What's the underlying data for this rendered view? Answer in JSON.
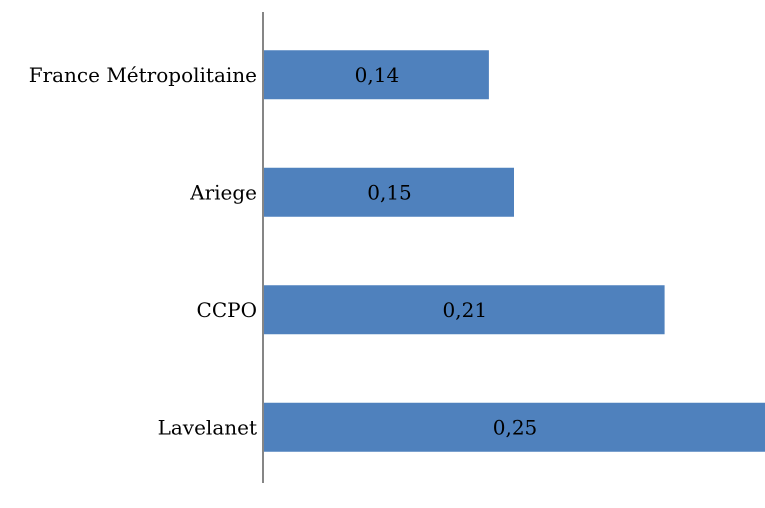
{
  "chart_data": {
    "type": "bar",
    "orientation": "horizontal",
    "categories": [
      "France Métropolitaine",
      "Ariege",
      "CCPO",
      "Lavelanet"
    ],
    "values": [
      0.14,
      0.15,
      0.21,
      0.25
    ],
    "value_labels": [
      "0,14",
      "0,15",
      "0,21",
      "0,25"
    ],
    "xlim": [
      0.05,
      0.25
    ],
    "bar_color": "#4F81BD",
    "axis_color": "#868686",
    "grid": false,
    "legend": "none"
  }
}
